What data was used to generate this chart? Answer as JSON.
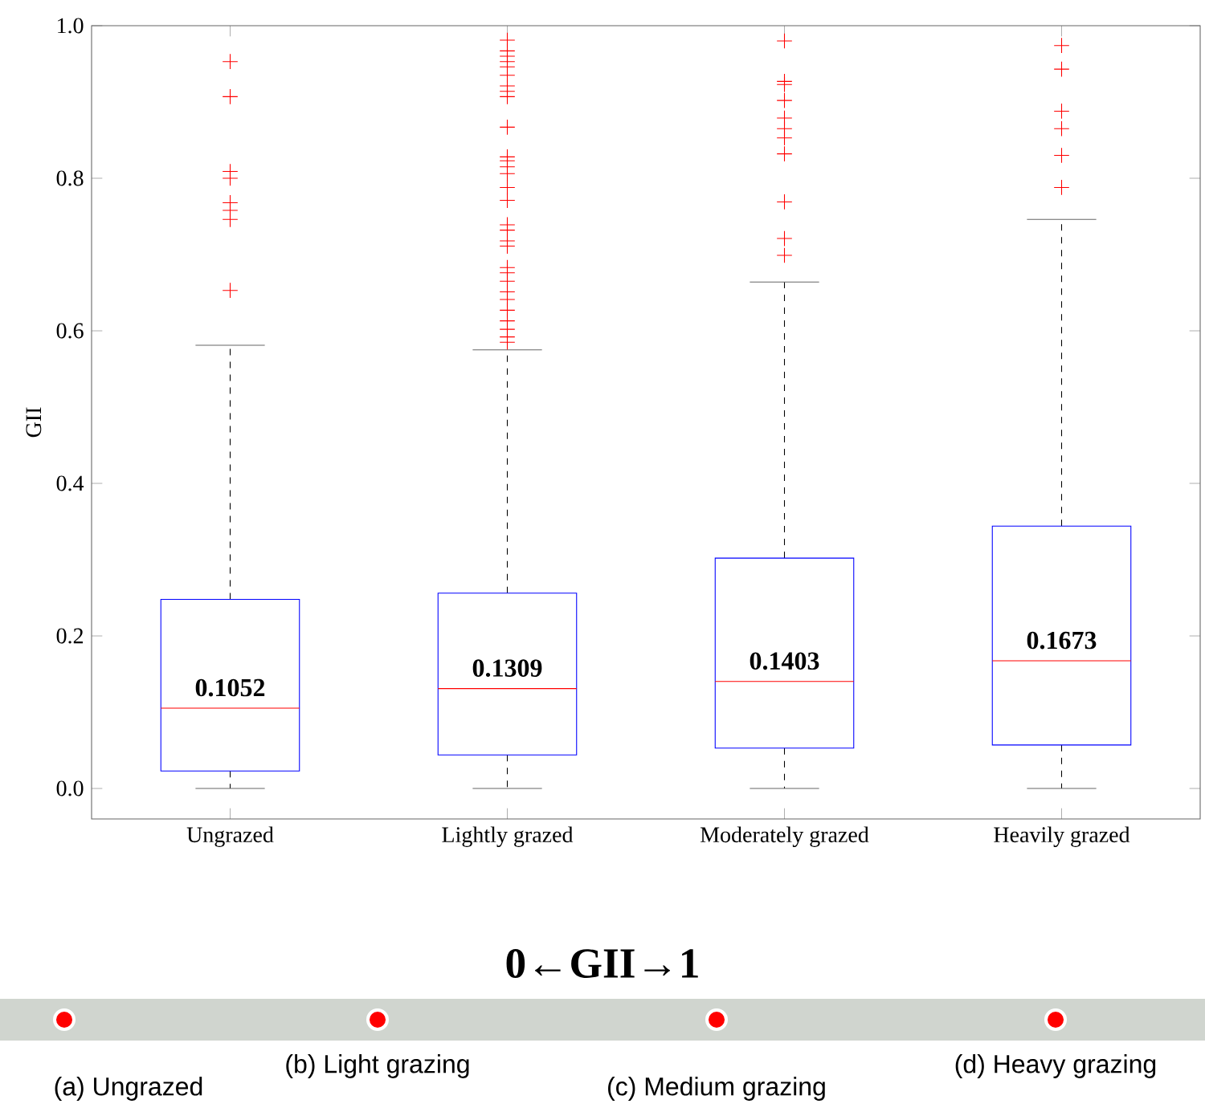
{
  "chart_data": {
    "type": "box",
    "categories": [
      "Ungrazed",
      "Lightly grazed",
      "Moderately grazed",
      "Heavily grazed"
    ],
    "ylabel": "GII",
    "ylim": [
      -0.04,
      1.0
    ],
    "yticks": [
      {
        "value": 0,
        "label": "0.0"
      },
      {
        "value": 0.2,
        "label": "0.2"
      },
      {
        "value": 0.4,
        "label": "0.4"
      },
      {
        "value": 0.6,
        "label": "0.6"
      },
      {
        "value": 0.8,
        "label": "0.8"
      },
      {
        "value": 1.0,
        "label": "1.0"
      }
    ],
    "color": "#0000ff",
    "boxes": [
      {
        "low": 0,
        "q1": 0.023,
        "median": 0.1052,
        "q3": 0.248,
        "high": 0.581,
        "outliers": [
          0.953,
          0.907,
          0.809,
          0.8,
          0.768,
          0.758,
          0.746,
          0.653
        ]
      },
      {
        "low": 0,
        "q1": 0.044,
        "median": 0.1309,
        "q3": 0.256,
        "high": 0.575,
        "outliers": [
          0.981,
          0.967,
          0.96,
          0.953,
          0.946,
          0.935,
          0.921,
          0.914,
          0.907,
          0.867,
          0.828,
          0.823,
          0.815,
          0.806,
          0.788,
          0.771,
          0.739,
          0.732,
          0.718,
          0.711,
          0.683,
          0.676,
          0.665,
          0.651,
          0.641,
          0.627,
          0.613,
          0.602,
          0.592,
          0.585
        ]
      },
      {
        "low": 0,
        "q1": 0.053,
        "median": 0.1403,
        "q3": 0.302,
        "high": 0.664,
        "outliers": [
          0.98,
          0.927,
          0.923,
          0.902,
          0.879,
          0.865,
          0.853,
          0.832,
          0.769,
          0.721,
          0.699
        ]
      },
      {
        "low": 0,
        "q1": 0.057,
        "median": 0.1673,
        "q3": 0.344,
        "high": 0.746,
        "outliers": [
          0.974,
          0.943,
          0.888,
          0.865,
          0.83,
          0.788
        ]
      }
    ],
    "value_labels": [
      "0.1052",
      "0.1309",
      "0.1403",
      "0.1673"
    ],
    "annotations": [
      "0←GII→1",
      "(a) Ungrazed",
      "(b) Light grazing",
      "(c) Medium grazing",
      "(d) Heavy grazing"
    ]
  }
}
